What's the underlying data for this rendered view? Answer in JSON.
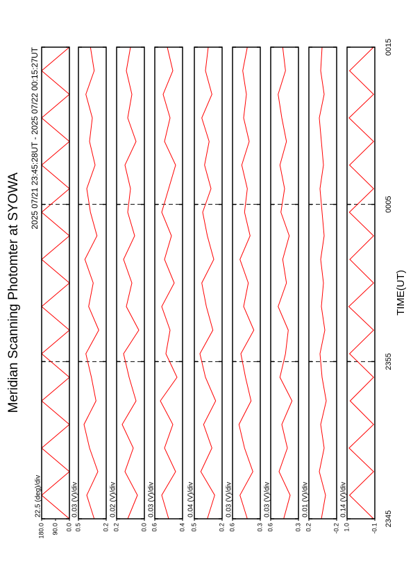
{
  "header": {
    "title": "Meridian Scanning Photomter at SYOWA",
    "subtitle": "2025 07/21 23:45:28UT - 2025 07/22 00:15:27UT",
    "x_label": "TIME(UT)"
  },
  "chart_data": [
    {
      "type": "line",
      "annotation": "22.5 (deg)/div",
      "color": "#ff0000",
      "ylim": [
        0,
        180
      ],
      "yticks": [
        {
          "value": 0,
          "label": "0.0"
        },
        {
          "value": 90,
          "label": "90.0"
        },
        {
          "value": 180,
          "label": "180.0"
        }
      ],
      "x": [
        0,
        1.5,
        3,
        4.5,
        6,
        7.5,
        9,
        10.5,
        12,
        13.5,
        15,
        16.5,
        18,
        19.5,
        21,
        22.5,
        24,
        25.5,
        27,
        28.5,
        30
      ],
      "values": [
        0,
        180,
        0,
        180,
        0,
        180,
        0,
        180,
        0,
        180,
        0,
        180,
        0,
        180,
        0,
        180,
        0,
        180,
        0,
        180,
        0
      ]
    },
    {
      "type": "line",
      "annotation": "0.03 (V)/div",
      "color": "#ff0000",
      "ylim": [
        0.2,
        0.5
      ],
      "yticks": [
        0.2,
        0.5
      ],
      "x": [
        0,
        1.5,
        3,
        4.5,
        6,
        7.5,
        9,
        10.5,
        12,
        13.5,
        15,
        16.5,
        18,
        19.5,
        21,
        22.5,
        24,
        25.5,
        27,
        28.5,
        30
      ],
      "values": [
        0.33,
        0.41,
        0.29,
        0.38,
        0.44,
        0.31,
        0.36,
        0.42,
        0.28,
        0.39,
        0.34,
        0.43,
        0.3,
        0.37,
        0.41,
        0.32,
        0.38,
        0.35,
        0.42,
        0.33,
        0.37
      ]
    },
    {
      "type": "line",
      "annotation": "0.02 (V)/div",
      "color": "#ff0000",
      "ylim": [
        0.0,
        0.2
      ],
      "yticks": [
        {
          "value": 0,
          "label": "0.0"
        },
        0.2
      ],
      "x": [
        0,
        1.5,
        3,
        4.5,
        6,
        7.5,
        9,
        10.5,
        12,
        13.5,
        15,
        16.5,
        18,
        19.5,
        21,
        22.5,
        24,
        25.5,
        27,
        28.5,
        30
      ],
      "values": [
        0.12,
        0.05,
        0.14,
        0.08,
        0.16,
        0.06,
        0.11,
        0.15,
        0.04,
        0.13,
        0.09,
        0.15,
        0.07,
        0.12,
        0.1,
        0.14,
        0.06,
        0.12,
        0.09,
        0.13,
        0.1
      ]
    },
    {
      "type": "line",
      "annotation": "0.03 (V)/div",
      "color": "#ff0000",
      "ylim": [
        0.4,
        0.6
      ],
      "yticks": [
        0.4,
        0.6
      ],
      "x": [
        0,
        1.5,
        3,
        4.5,
        6,
        7.5,
        9,
        10.5,
        12,
        13.5,
        15,
        16.5,
        18,
        19.5,
        21,
        22.5,
        24,
        25.5,
        27,
        28.5,
        30
      ],
      "values": [
        0.5,
        0.55,
        0.45,
        0.53,
        0.47,
        0.56,
        0.44,
        0.52,
        0.49,
        0.55,
        0.46,
        0.53,
        0.48,
        0.55,
        0.5,
        0.45,
        0.53,
        0.49,
        0.54,
        0.47,
        0.51
      ]
    },
    {
      "type": "line",
      "annotation": "0.04 (V)/div",
      "color": "#ff0000",
      "ylim": [
        0.2,
        0.5
      ],
      "yticks": [
        0.2,
        0.5
      ],
      "x": [
        0,
        1.5,
        3,
        4.5,
        6,
        7.5,
        9,
        10.5,
        12,
        13.5,
        15,
        16.5,
        18,
        19.5,
        21,
        22.5,
        24,
        25.5,
        27,
        28.5,
        30
      ],
      "values": [
        0.36,
        0.28,
        0.43,
        0.31,
        0.4,
        0.27,
        0.38,
        0.44,
        0.3,
        0.37,
        0.42,
        0.29,
        0.36,
        0.41,
        0.32,
        0.39,
        0.34,
        0.42,
        0.31,
        0.38,
        0.35
      ]
    },
    {
      "type": "line",
      "annotation": "0.03 (V)/div",
      "color": "#ff0000",
      "ylim": [
        0.3,
        0.6
      ],
      "yticks": [
        0.3,
        0.6
      ],
      "x": [
        0,
        1.5,
        3,
        4.5,
        6,
        7.5,
        9,
        10.5,
        12,
        13.5,
        15,
        16.5,
        18,
        19.5,
        21,
        22.5,
        24,
        25.5,
        27,
        28.5,
        30
      ],
      "values": [
        0.44,
        0.52,
        0.38,
        0.47,
        0.53,
        0.4,
        0.46,
        0.51,
        0.37,
        0.48,
        0.43,
        0.52,
        0.41,
        0.47,
        0.44,
        0.5,
        0.42,
        0.48,
        0.45,
        0.49,
        0.44
      ]
    },
    {
      "type": "line",
      "annotation": "0.03 (V)/div",
      "color": "#ff0000",
      "ylim": [
        0.3,
        0.6
      ],
      "yticks": [
        0.3,
        0.6
      ],
      "x": [
        0,
        1.5,
        3,
        4.5,
        6,
        7.5,
        9,
        10.5,
        12,
        13.5,
        15,
        16.5,
        18,
        19.5,
        21,
        22.5,
        24,
        25.5,
        27,
        28.5,
        30
      ],
      "values": [
        0.46,
        0.39,
        0.51,
        0.42,
        0.48,
        0.37,
        0.5,
        0.44,
        0.41,
        0.52,
        0.43,
        0.47,
        0.4,
        0.49,
        0.45,
        0.5,
        0.43,
        0.48,
        0.52,
        0.44,
        0.47
      ]
    },
    {
      "type": "line",
      "annotation": "0.01 (V)/div",
      "color": "#ff0000",
      "ylim": [
        -0.2,
        0.2
      ],
      "yticks": [
        -0.2,
        0.2
      ],
      "x": [
        0,
        1.5,
        3,
        4.5,
        6,
        7.5,
        9,
        10.5,
        12,
        13.5,
        15,
        16.5,
        18,
        19.5,
        21,
        22.5,
        24,
        25.5,
        27,
        28.5,
        30
      ],
      "values": [
        0.02,
        -0.04,
        0.05,
        -0.02,
        0.03,
        -0.05,
        0.01,
        0.04,
        -0.03,
        0.02,
        -0.01,
        0.03,
        -0.02,
        0.01,
        0.04,
        -0.01,
        0.02,
        0.05,
        -0.02,
        0.03,
        0.01
      ]
    },
    {
      "type": "line",
      "annotation": "0.14 (V)/div",
      "color": "#ff0000",
      "ylim": [
        -0.1,
        1.0
      ],
      "yticks": [
        -0.1,
        {
          "value": 1,
          "label": "1.0"
        }
      ],
      "x": [
        0,
        1.5,
        3,
        4.5,
        6,
        7.5,
        9,
        10.5,
        12,
        13.5,
        15,
        16.5,
        18,
        19.5,
        21,
        22.5,
        24,
        25.5,
        27,
        28.5,
        30
      ],
      "values": [
        -0.05,
        0.9,
        -0.05,
        0.92,
        -0.05,
        0.88,
        -0.05,
        0.9,
        -0.05,
        0.93,
        -0.05,
        0.89,
        -0.05,
        0.91,
        -0.05,
        0.9,
        -0.05,
        0.92,
        -0.05,
        0.9,
        -0.05
      ],
      "xlim": [
        0,
        30
      ],
      "xticks": [
        {
          "value": 0,
          "label": "2345"
        },
        {
          "value": 10,
          "label": "2355"
        },
        {
          "value": 20,
          "label": "0005"
        },
        {
          "value": 30,
          "label": "0015"
        }
      ]
    }
  ]
}
